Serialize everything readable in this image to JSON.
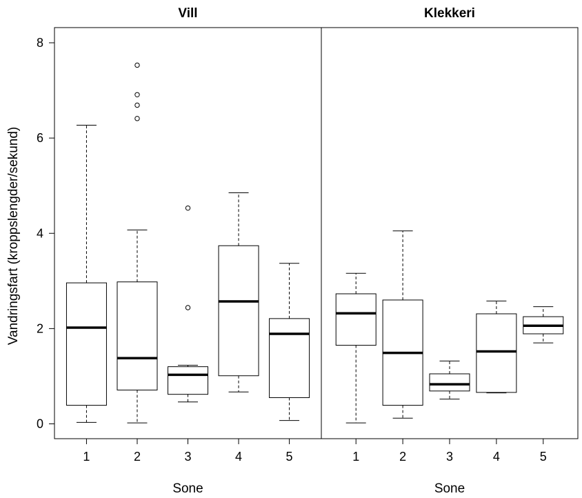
{
  "chart_data": {
    "type": "boxplot",
    "ylabel": "Vandringsfart (kroppslengder/sekund)",
    "xlabel": "Sone",
    "ylim": [
      -0.3,
      8.2
    ],
    "y_ticks": [
      0,
      2,
      4,
      6,
      8
    ],
    "categories": [
      "1",
      "2",
      "3",
      "4",
      "5"
    ],
    "grid": false,
    "panels": [
      {
        "title": "Vill",
        "boxes": [
          {
            "category": "1",
            "whisker_low": 0.03,
            "q1": 0.39,
            "median": 2.02,
            "q3": 2.96,
            "whisker_high": 6.27,
            "outliers": []
          },
          {
            "category": "2",
            "whisker_low": 0.02,
            "q1": 0.71,
            "median": 1.38,
            "q3": 2.98,
            "whisker_high": 4.07,
            "outliers": [
              6.41,
              6.69,
              6.91,
              7.53
            ]
          },
          {
            "category": "3",
            "whisker_low": 0.46,
            "q1": 0.62,
            "median": 1.03,
            "q3": 1.2,
            "whisker_high": 1.23,
            "outliers": [
              2.44,
              4.53
            ]
          },
          {
            "category": "4",
            "whisker_low": 0.67,
            "q1": 1.01,
            "median": 2.57,
            "q3": 3.74,
            "whisker_high": 4.85,
            "outliers": []
          },
          {
            "category": "5",
            "whisker_low": 0.07,
            "q1": 0.55,
            "median": 1.89,
            "q3": 2.21,
            "whisker_high": 3.37,
            "outliers": []
          }
        ]
      },
      {
        "title": "Klekkeri",
        "boxes": [
          {
            "category": "1",
            "whisker_low": 0.02,
            "q1": 1.65,
            "median": 2.32,
            "q3": 2.73,
            "whisker_high": 3.16,
            "outliers": []
          },
          {
            "category": "2",
            "whisker_low": 0.12,
            "q1": 0.39,
            "median": 1.49,
            "q3": 2.6,
            "whisker_high": 4.05,
            "outliers": []
          },
          {
            "category": "3",
            "whisker_low": 0.52,
            "q1": 0.69,
            "median": 0.83,
            "q3": 1.05,
            "whisker_high": 1.32,
            "outliers": []
          },
          {
            "category": "4",
            "whisker_low": 0.65,
            "q1": 0.66,
            "median": 1.52,
            "q3": 2.31,
            "whisker_high": 2.58,
            "outliers": []
          },
          {
            "category": "5",
            "whisker_low": 1.7,
            "q1": 1.89,
            "median": 2.06,
            "q3": 2.25,
            "whisker_high": 2.46,
            "outliers": []
          }
        ]
      }
    ]
  }
}
